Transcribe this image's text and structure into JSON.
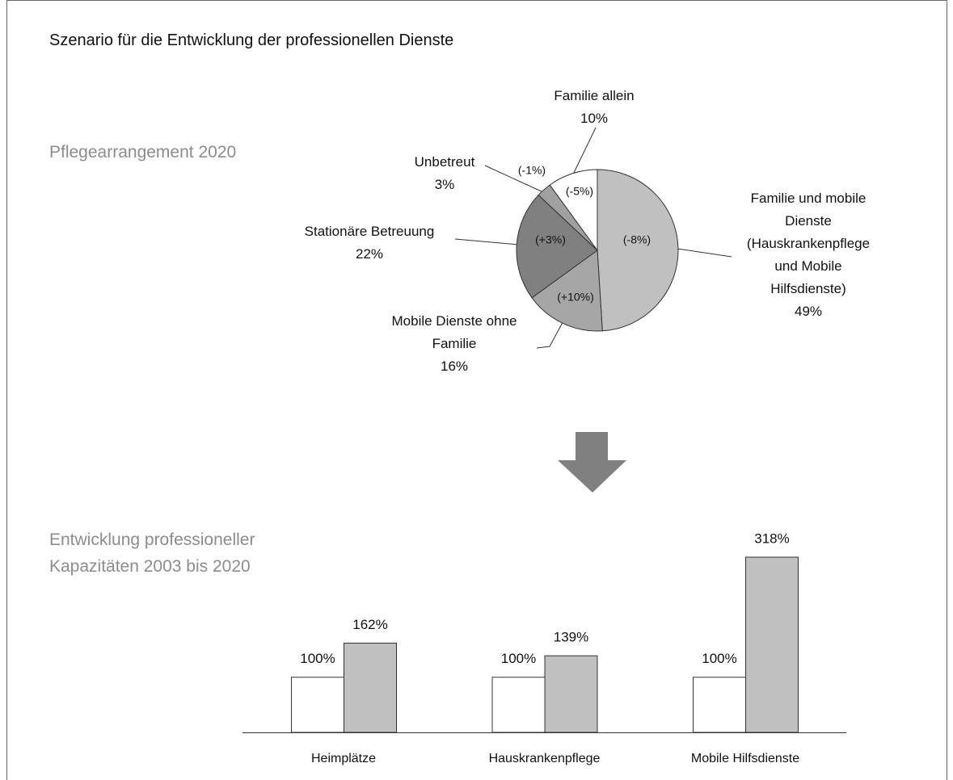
{
  "title": "Szenario für die Entwicklung der professionellen Dienste",
  "chart_data": [
    {
      "type": "pie",
      "title": "Pflegearrangement 2020",
      "categories": [
        "Familie und mobile Dienste (Hauskrankenpflege und Mobile Hilfsdienste)",
        "Mobile Dienste ohne Familie",
        "Stationäre Betreuung",
        "Unbetreut",
        "Familie allein"
      ],
      "values": [
        49,
        16,
        22,
        3,
        10
      ],
      "value_labels": [
        "49%",
        "16%",
        "22%",
        "3%",
        "10%"
      ],
      "change_labels": [
        "(-8%)",
        "(+10%)",
        "(+3%)",
        "(-1%)",
        "(-5%)"
      ],
      "colors": [
        "#c0c0c0",
        "#a6a6a6",
        "#808080",
        "#a0a0a0",
        "#ffffff"
      ]
    },
    {
      "type": "bar",
      "title": "Entwicklung professioneller Kapazitäten 2003 bis 2020",
      "categories": [
        "Heimplätze",
        "Hauskrankenpflege",
        "Mobile Hilfsdienste"
      ],
      "series": [
        {
          "color": "#ffffff",
          "values": [
            100,
            100,
            100
          ],
          "value_labels": [
            "100%",
            "100%",
            "100%"
          ]
        },
        {
          "color": "#c0c0c0",
          "values": [
            162,
            139,
            318
          ],
          "value_labels": [
            "162%",
            "139%",
            "318%"
          ]
        }
      ]
    }
  ]
}
